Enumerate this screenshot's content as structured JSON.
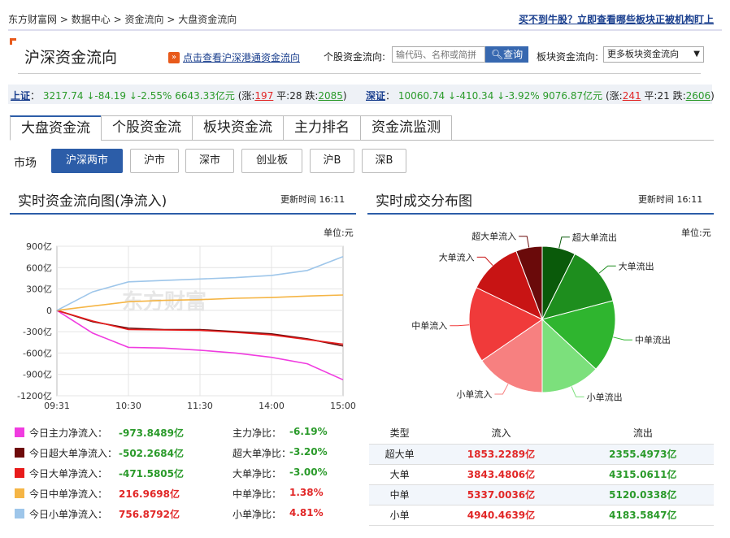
{
  "breadcrumb": {
    "items": [
      "东方财富网",
      "数据中心",
      "资金流向",
      "大盘资金流向"
    ],
    "sep": ">"
  },
  "promo": {
    "text": "买不到牛股？立即查看哪些板块正被机构盯上"
  },
  "header": {
    "title": "沪深资金流向",
    "hgt_link": "点击查看沪深港通资金流向",
    "stock_label": "个股资金流向:",
    "search_placeholder": "输代码、名称或简拼",
    "search_button": "查询",
    "block_label": "板块资金流向:",
    "block_select": "更多板块资金流向"
  },
  "index_bar": {
    "sh": {
      "name": "上证",
      "sep": "：",
      "price": "3217.74",
      "change": "↓-84.19",
      "pct": "↓-2.55%",
      "amount": "6643.33亿元",
      "up_open": "(涨:",
      "up": "197",
      "flat_label": "平:",
      "flat": "28",
      "down_label": "跌:",
      "down": "2085",
      "close": ")"
    },
    "sz": {
      "name": "深证",
      "sep": "：",
      "price": "10060.74",
      "change": "↓-410.34",
      "pct": "↓-3.92%",
      "amount": "9076.87亿元",
      "up_open": "(涨:",
      "up": "241",
      "flat_label": "平:",
      "flat": "21",
      "down_label": "跌:",
      "down": "2606",
      "close": ")"
    }
  },
  "tabs": [
    "大盘资金流",
    "个股资金流",
    "板块资金流",
    "主力排名",
    "资金流监测"
  ],
  "market": {
    "label": "市场",
    "options": [
      "沪深两市",
      "沪市",
      "深市",
      "创业板",
      "沪B",
      "深B"
    ],
    "selected": "沪深两市"
  },
  "left_panel": {
    "title": "实时资金流向图(净流入)",
    "update": "更新时间 16:11",
    "unit": "单位:元",
    "watermark": "东方财富"
  },
  "right_panel": {
    "title": "实时成交分布图",
    "update": "更新时间 16:11",
    "unit": "单位:元"
  },
  "legend": [
    {
      "label": "今日主力净流入：",
      "value": "-973.8489亿",
      "ratio_label": "主力净比：",
      "ratio": "-6.19%",
      "color": "#f03ce0"
    },
    {
      "label": "今日超大单净流入：",
      "value": "-502.2684亿",
      "ratio_label": "超大单净比：",
      "ratio": "-3.20%",
      "color": "#6e0b0b"
    },
    {
      "label": "今日大单净流入：",
      "value": "-471.5805亿",
      "ratio_label": "大单净比：",
      "ratio": "-3.00%",
      "color": "#e81b1b"
    },
    {
      "label": "今日中单净流入：",
      "value": "216.9698亿",
      "ratio_label": "中单净比：",
      "ratio": "1.38%",
      "color": "#f5b545"
    },
    {
      "label": "今日小单净流入：",
      "value": "756.8792亿",
      "ratio_label": "小单净比：",
      "ratio": "4.81%",
      "color": "#9ec6ea"
    }
  ],
  "dist_table": {
    "headers": [
      "类型",
      "流入",
      "流出"
    ],
    "rows": [
      [
        "超大单",
        "1853.2289亿",
        "2355.4973亿"
      ],
      [
        "大单",
        "3843.4806亿",
        "4315.0611亿"
      ],
      [
        "中单",
        "5337.0036亿",
        "5120.0338亿"
      ],
      [
        "小单",
        "4940.4639亿",
        "4183.5847亿"
      ]
    ]
  },
  "chart_data": [
    {
      "type": "line",
      "title": "实时资金流向图(净流入)",
      "xlabel": "",
      "ylabel": "",
      "x": [
        "09:31",
        "10:00",
        "10:30",
        "11:00",
        "11:30",
        "13:30",
        "14:00",
        "14:30",
        "15:00"
      ],
      "x_ticks": [
        "09:31",
        "10:30",
        "11:30",
        "14:00",
        "15:00"
      ],
      "y_ticks": [
        "900亿",
        "600亿",
        "300亿",
        "0",
        "-300亿",
        "-600亿",
        "-900亿",
        "-1200亿"
      ],
      "ylim": [
        -1200,
        900
      ],
      "series": [
        {
          "name": "今日主力净流入",
          "color": "#f03ce0",
          "values": [
            0,
            -320,
            -520,
            -530,
            -560,
            -600,
            -660,
            -750,
            -975
          ]
        },
        {
          "name": "今日超大单净流入",
          "color": "#6e0b0b",
          "values": [
            0,
            -160,
            -250,
            -270,
            -270,
            -300,
            -330,
            -400,
            -500
          ]
        },
        {
          "name": "今日大单净流入",
          "color": "#e81b1b",
          "values": [
            0,
            -150,
            -270,
            -275,
            -280,
            -310,
            -345,
            -410,
            -475
          ]
        },
        {
          "name": "今日中单净流入",
          "color": "#f5b545",
          "values": [
            0,
            60,
            120,
            140,
            150,
            170,
            180,
            200,
            215
          ]
        },
        {
          "name": "今日小单净流入",
          "color": "#9ec6ea",
          "values": [
            0,
            260,
            400,
            420,
            440,
            460,
            490,
            560,
            755
          ]
        }
      ]
    },
    {
      "type": "pie",
      "title": "实时成交分布图",
      "categories": [
        "超大单流出",
        "大单流出",
        "中单流出",
        "小单流出",
        "小单流入",
        "中单流入",
        "大单流入",
        "超大单流入"
      ],
      "values": [
        2355.4973,
        4315.0611,
        5120.0338,
        4183.5847,
        4940.4639,
        5337.0036,
        3843.4806,
        1853.2289
      ],
      "colors": [
        "#0a5a0a",
        "#1e8e1e",
        "#2fb52f",
        "#7ce07c",
        "#f78080",
        "#f03a3a",
        "#c81414",
        "#6a0a0a"
      ]
    }
  ]
}
